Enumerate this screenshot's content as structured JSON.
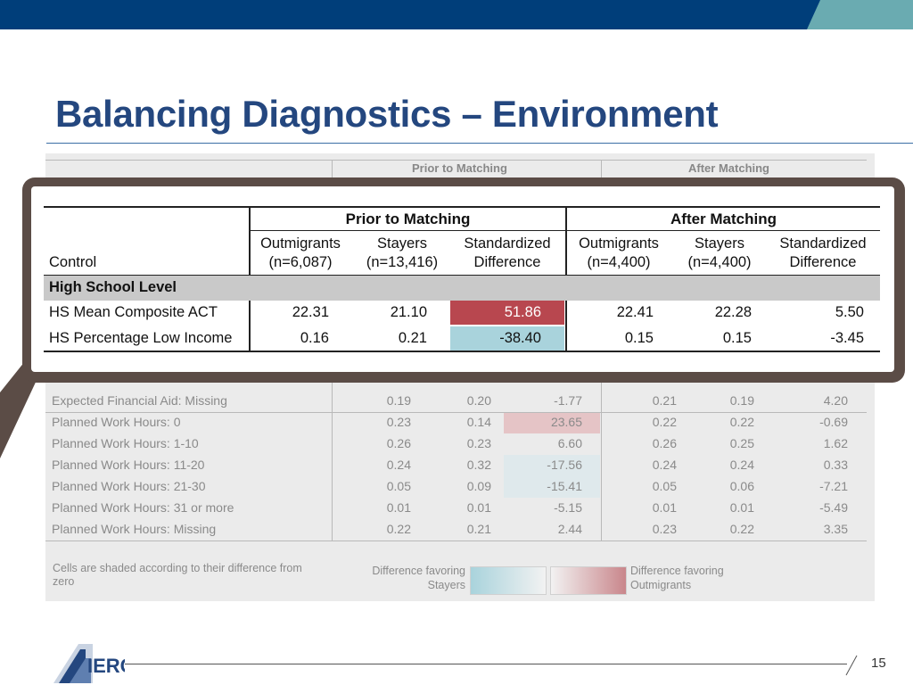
{
  "slide": {
    "title": "Balancing Diagnostics – Environment",
    "page_number": "15",
    "logo_text": "IERC"
  },
  "colors": {
    "topbar_navy": "#003e7a",
    "topbar_teal": "#6aabb1",
    "title": "#24477f",
    "favor_outmigrants": "#b8474f",
    "favor_stayers": "#a9d3dc"
  },
  "zoom_table": {
    "group_prior": "Prior to Matching",
    "group_after": "After Matching",
    "control_label": "Control",
    "columns": [
      [
        "Outmigrants",
        "(n=6,087)"
      ],
      [
        "Stayers",
        "(n=13,416)"
      ],
      [
        "Standardized",
        "Difference"
      ],
      [
        "Outmigrants",
        "(n=4,400)"
      ],
      [
        "Stayers",
        "(n=4,400)"
      ],
      [
        "Standardized",
        "Difference"
      ]
    ],
    "section": "High School Level",
    "rows": [
      {
        "label": "HS Mean Composite ACT",
        "values": [
          "22.31",
          "21.10",
          "51.86",
          "22.41",
          "22.28",
          "5.50"
        ],
        "shade": "outmigrants"
      },
      {
        "label": "HS Percentage Low Income",
        "values": [
          "0.16",
          "0.21",
          "-38.40",
          "0.15",
          "0.15",
          "-3.45"
        ],
        "shade": "stayers"
      }
    ]
  },
  "background_table": {
    "group_prior": "Prior to Matching",
    "group_after": "After Matching",
    "rows": [
      {
        "label": "Expected Financial Aid: Missing",
        "values": [
          "0.19",
          "0.20",
          "-1.77",
          "0.21",
          "0.19",
          "4.20"
        ],
        "shade": "none"
      },
      {
        "label": "Planned Work Hours: 0",
        "values": [
          "0.23",
          "0.14",
          "23.65",
          "0.22",
          "0.22",
          "-0.69"
        ],
        "shade": "outmigrants"
      },
      {
        "label": "Planned Work Hours: 1-10",
        "values": [
          "0.26",
          "0.23",
          "6.60",
          "0.26",
          "0.25",
          "1.62"
        ],
        "shade": "none"
      },
      {
        "label": "Planned Work Hours: 11-20",
        "values": [
          "0.24",
          "0.32",
          "-17.56",
          "0.24",
          "0.24",
          "0.33"
        ],
        "shade": "stayers"
      },
      {
        "label": "Planned Work Hours: 21-30",
        "values": [
          "0.05",
          "0.09",
          "-15.41",
          "0.05",
          "0.06",
          "-7.21"
        ],
        "shade": "stayers"
      },
      {
        "label": "Planned Work Hours: 31 or more",
        "values": [
          "0.01",
          "0.01",
          "-5.15",
          "0.01",
          "0.01",
          "-5.49"
        ],
        "shade": "none"
      },
      {
        "label": "Planned Work Hours: Missing",
        "values": [
          "0.22",
          "0.21",
          "2.44",
          "0.23",
          "0.22",
          "3.35"
        ],
        "shade": "none"
      }
    ],
    "legend": {
      "note": "Cells are shaded according to their difference from zero",
      "stayers_label_1": "Difference favoring",
      "stayers_label_2": "Stayers",
      "outmigrants_label_1": "Difference favoring",
      "outmigrants_label_2": "Outmigrants"
    }
  }
}
